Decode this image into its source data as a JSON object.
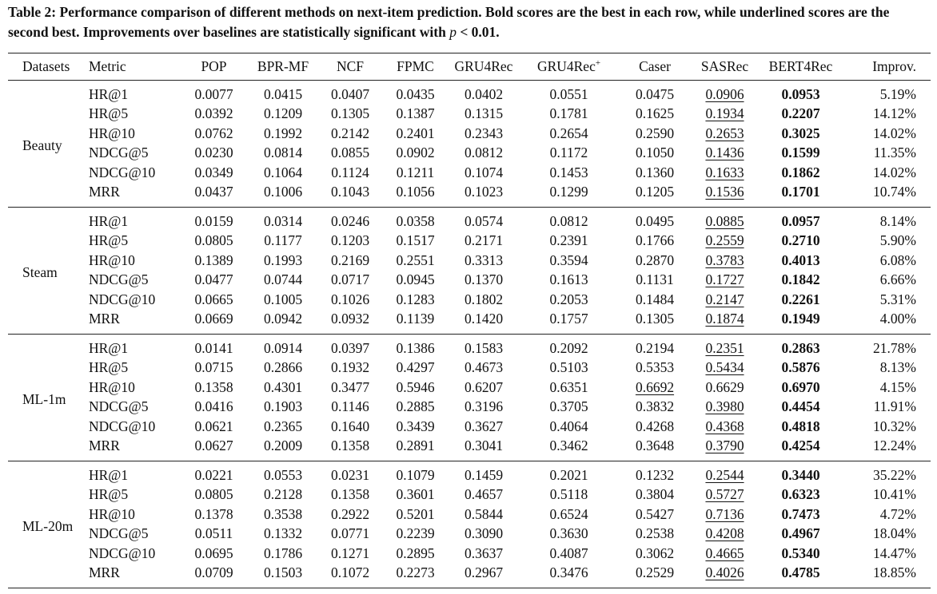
{
  "caption": {
    "label": "Table 2:",
    "text": " Performance comparison of different methods on next-item prediction. Bold scores are the best in each row, while underlined scores are the second best. Improvements over baselines are statistically significant with ",
    "var": "p",
    "tail": " < 0.01."
  },
  "header": [
    "Datasets",
    "Metric",
    "POP",
    "BPR-MF",
    "NCF",
    "FPMC",
    "GRU4Rec",
    {
      "text": "GRU4Rec",
      "sup": "+"
    },
    "Caser",
    "SASRec",
    "BERT4Rec",
    "Improv."
  ],
  "datasets": [
    {
      "name": "Beauty",
      "rows": [
        {
          "metric": "HR@1",
          "values": [
            "0.0077",
            "0.0415",
            "0.0407",
            "0.0435",
            "0.0402",
            "0.0551",
            "0.0475",
            "0.0906",
            "0.0953"
          ],
          "improv": "5.19%",
          "best": "BERT4Rec",
          "second": "SASRec"
        },
        {
          "metric": "HR@5",
          "values": [
            "0.0392",
            "0.1209",
            "0.1305",
            "0.1387",
            "0.1315",
            "0.1781",
            "0.1625",
            "0.1934",
            "0.2207"
          ],
          "improv": "14.12%",
          "best": "BERT4Rec",
          "second": "SASRec"
        },
        {
          "metric": "HR@10",
          "values": [
            "0.0762",
            "0.1992",
            "0.2142",
            "0.2401",
            "0.2343",
            "0.2654",
            "0.2590",
            "0.2653",
            "0.3025"
          ],
          "improv": "14.02%",
          "best": "BERT4Rec",
          "second": "SASRec"
        },
        {
          "metric": "NDCG@5",
          "values": [
            "0.0230",
            "0.0814",
            "0.0855",
            "0.0902",
            "0.0812",
            "0.1172",
            "0.1050",
            "0.1436",
            "0.1599"
          ],
          "improv": "11.35%",
          "best": "BERT4Rec",
          "second": "SASRec"
        },
        {
          "metric": "NDCG@10",
          "values": [
            "0.0349",
            "0.1064",
            "0.1124",
            "0.1211",
            "0.1074",
            "0.1453",
            "0.1360",
            "0.1633",
            "0.1862"
          ],
          "improv": "14.02%",
          "best": "BERT4Rec",
          "second": "SASRec"
        },
        {
          "metric": "MRR",
          "values": [
            "0.0437",
            "0.1006",
            "0.1043",
            "0.1056",
            "0.1023",
            "0.1299",
            "0.1205",
            "0.1536",
            "0.1701"
          ],
          "improv": "10.74%",
          "best": "BERT4Rec",
          "second": "SASRec"
        }
      ]
    },
    {
      "name": "Steam",
      "rows": [
        {
          "metric": "HR@1",
          "values": [
            "0.0159",
            "0.0314",
            "0.0246",
            "0.0358",
            "0.0574",
            "0.0812",
            "0.0495",
            "0.0885",
            "0.0957"
          ],
          "improv": "8.14%",
          "best": "BERT4Rec",
          "second": "SASRec"
        },
        {
          "metric": "HR@5",
          "values": [
            "0.0805",
            "0.1177",
            "0.1203",
            "0.1517",
            "0.2171",
            "0.2391",
            "0.1766",
            "0.2559",
            "0.2710"
          ],
          "improv": "5.90%",
          "best": "BERT4Rec",
          "second": "SASRec"
        },
        {
          "metric": "HR@10",
          "values": [
            "0.1389",
            "0.1993",
            "0.2169",
            "0.2551",
            "0.3313",
            "0.3594",
            "0.2870",
            "0.3783",
            "0.4013"
          ],
          "improv": "6.08%",
          "best": "BERT4Rec",
          "second": "SASRec"
        },
        {
          "metric": "NDCG@5",
          "values": [
            "0.0477",
            "0.0744",
            "0.0717",
            "0.0945",
            "0.1370",
            "0.1613",
            "0.1131",
            "0.1727",
            "0.1842"
          ],
          "improv": "6.66%",
          "best": "BERT4Rec",
          "second": "SASRec"
        },
        {
          "metric": "NDCG@10",
          "values": [
            "0.0665",
            "0.1005",
            "0.1026",
            "0.1283",
            "0.1802",
            "0.2053",
            "0.1484",
            "0.2147",
            "0.2261"
          ],
          "improv": "5.31%",
          "best": "BERT4Rec",
          "second": "SASRec"
        },
        {
          "metric": "MRR",
          "values": [
            "0.0669",
            "0.0942",
            "0.0932",
            "0.1139",
            "0.1420",
            "0.1757",
            "0.1305",
            "0.1874",
            "0.1949"
          ],
          "improv": "4.00%",
          "best": "BERT4Rec",
          "second": "SASRec"
        }
      ]
    },
    {
      "name": "ML-1m",
      "rows": [
        {
          "metric": "HR@1",
          "values": [
            "0.0141",
            "0.0914",
            "0.0397",
            "0.1386",
            "0.1583",
            "0.2092",
            "0.2194",
            "0.2351",
            "0.2863"
          ],
          "improv": "21.78%",
          "best": "BERT4Rec",
          "second": "SASRec"
        },
        {
          "metric": "HR@5",
          "values": [
            "0.0715",
            "0.2866",
            "0.1932",
            "0.4297",
            "0.4673",
            "0.5103",
            "0.5353",
            "0.5434",
            "0.5876"
          ],
          "improv": "8.13%",
          "best": "BERT4Rec",
          "second": "SASRec"
        },
        {
          "metric": "HR@10",
          "values": [
            "0.1358",
            "0.4301",
            "0.3477",
            "0.5946",
            "0.6207",
            "0.6351",
            "0.6692",
            "0.6629",
            "0.6970"
          ],
          "improv": "4.15%",
          "best": "BERT4Rec",
          "second": "Caser"
        },
        {
          "metric": "NDCG@5",
          "values": [
            "0.0416",
            "0.1903",
            "0.1146",
            "0.2885",
            "0.3196",
            "0.3705",
            "0.3832",
            "0.3980",
            "0.4454"
          ],
          "improv": "11.91%",
          "best": "BERT4Rec",
          "second": "SASRec"
        },
        {
          "metric": "NDCG@10",
          "values": [
            "0.0621",
            "0.2365",
            "0.1640",
            "0.3439",
            "0.3627",
            "0.4064",
            "0.4268",
            "0.4368",
            "0.4818"
          ],
          "improv": "10.32%",
          "best": "BERT4Rec",
          "second": "SASRec"
        },
        {
          "metric": "MRR",
          "values": [
            "0.0627",
            "0.2009",
            "0.1358",
            "0.2891",
            "0.3041",
            "0.3462",
            "0.3648",
            "0.3790",
            "0.4254"
          ],
          "improv": "12.24%",
          "best": "BERT4Rec",
          "second": "SASRec"
        }
      ]
    },
    {
      "name": "ML-20m",
      "rows": [
        {
          "metric": "HR@1",
          "values": [
            "0.0221",
            "0.0553",
            "0.0231",
            "0.1079",
            "0.1459",
            "0.2021",
            "0.1232",
            "0.2544",
            "0.3440"
          ],
          "improv": "35.22%",
          "best": "BERT4Rec",
          "second": "SASRec"
        },
        {
          "metric": "HR@5",
          "values": [
            "0.0805",
            "0.2128",
            "0.1358",
            "0.3601",
            "0.4657",
            "0.5118",
            "0.3804",
            "0.5727",
            "0.6323"
          ],
          "improv": "10.41%",
          "best": "BERT4Rec",
          "second": "SASRec"
        },
        {
          "metric": "HR@10",
          "values": [
            "0.1378",
            "0.3538",
            "0.2922",
            "0.5201",
            "0.5844",
            "0.6524",
            "0.5427",
            "0.7136",
            "0.7473"
          ],
          "improv": "4.72%",
          "best": "BERT4Rec",
          "second": "SASRec"
        },
        {
          "metric": "NDCG@5",
          "values": [
            "0.0511",
            "0.1332",
            "0.0771",
            "0.2239",
            "0.3090",
            "0.3630",
            "0.2538",
            "0.4208",
            "0.4967"
          ],
          "improv": "18.04%",
          "best": "BERT4Rec",
          "second": "SASRec"
        },
        {
          "metric": "NDCG@10",
          "values": [
            "0.0695",
            "0.1786",
            "0.1271",
            "0.2895",
            "0.3637",
            "0.4087",
            "0.3062",
            "0.4665",
            "0.5340"
          ],
          "improv": "14.47%",
          "best": "BERT4Rec",
          "second": "SASRec"
        },
        {
          "metric": "MRR",
          "values": [
            "0.0709",
            "0.1503",
            "0.1072",
            "0.2273",
            "0.2967",
            "0.3476",
            "0.2529",
            "0.4026",
            "0.4785"
          ],
          "improv": "18.85%",
          "best": "BERT4Rec",
          "second": "SASRec"
        }
      ]
    }
  ]
}
